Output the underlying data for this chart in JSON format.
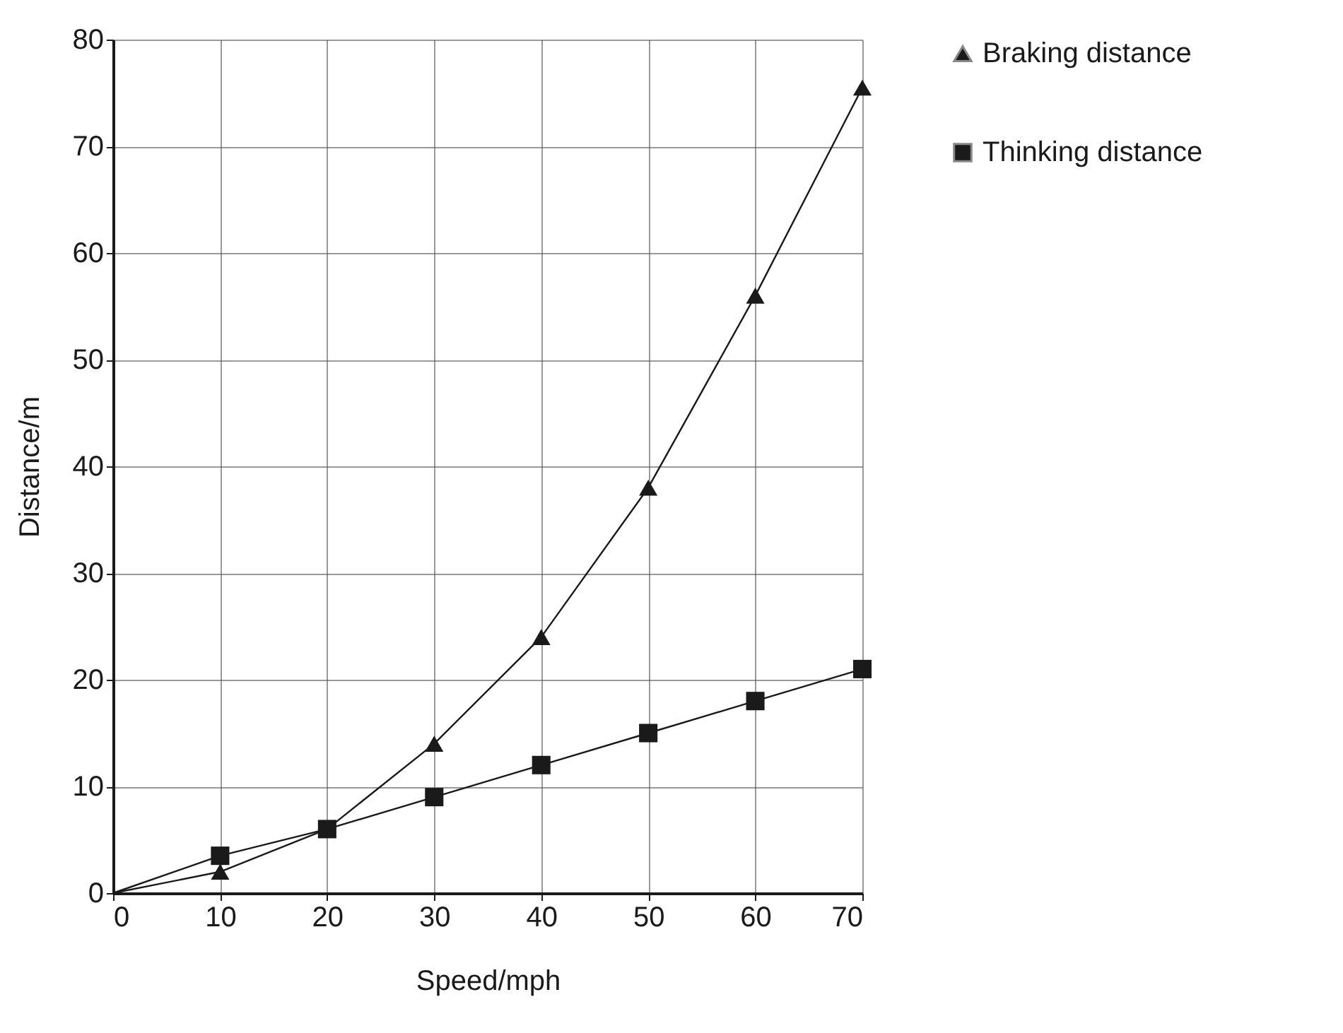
{
  "chart_data": {
    "type": "scatter",
    "xlabel": "Speed/mph",
    "ylabel": "Distance/m",
    "xlim": [
      0,
      70
    ],
    "ylim": [
      0,
      80
    ],
    "xticks": [
      0,
      10,
      20,
      30,
      40,
      50,
      60,
      70
    ],
    "yticks": [
      0,
      10,
      20,
      30,
      40,
      50,
      60,
      70,
      80
    ],
    "grid": true,
    "legend": "right",
    "series": [
      {
        "name": "Braking distance",
        "marker": "triangle",
        "color": "#1a1a1a",
        "x": [
          10,
          20,
          30,
          40,
          50,
          60,
          70
        ],
        "values": [
          2,
          null,
          14,
          24,
          38,
          56,
          75.5
        ]
      },
      {
        "name": "Thinking distance",
        "marker": "square",
        "color": "#1a1a1a",
        "x": [
          10,
          20,
          30,
          40,
          50,
          60,
          70
        ],
        "values": [
          3.5,
          6,
          9,
          12,
          15,
          18,
          21
        ]
      },
      {
        "type": "line",
        "color": "#1a1a1a",
        "x": [
          0,
          10,
          20,
          30,
          40,
          50,
          60,
          70
        ],
        "values": [
          0,
          2,
          6,
          14,
          24,
          38,
          56,
          75.5
        ]
      },
      {
        "type": "line",
        "color": "#1a1a1a",
        "x": [
          0,
          10,
          20,
          30,
          40,
          50,
          60,
          70
        ],
        "values": [
          0,
          3.5,
          6,
          9,
          12,
          15,
          18,
          21
        ]
      }
    ]
  }
}
